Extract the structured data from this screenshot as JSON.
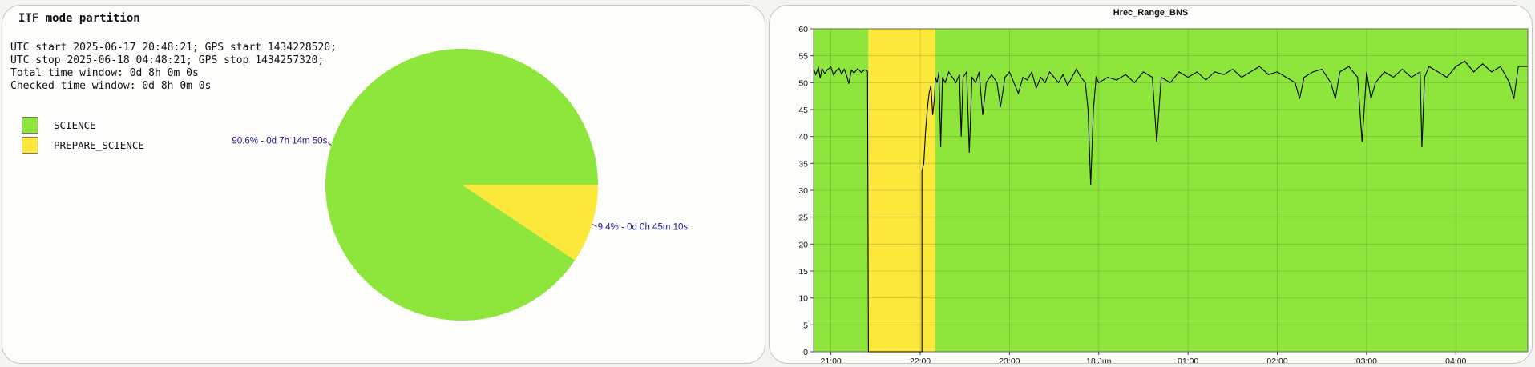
{
  "left": {
    "title": "ITF mode partition",
    "info_lines": [
      "UTC start 2025-06-17 20:48:21; GPS start 1434228520;",
      "UTC stop 2025-06-18 04:48:21; GPS stop 1434257320;",
      "Total time window: 0d 8h 0m 0s",
      "Checked time window: 0d 8h 0m 0s"
    ],
    "legend": [
      {
        "label": "SCIENCE",
        "color": "#8ee63c"
      },
      {
        "label": "PREPARE_SCIENCE",
        "color": "#fce83a"
      }
    ]
  },
  "chart_data": [
    {
      "type": "pie",
      "categories": [
        "SCIENCE",
        "PREPARE_SCIENCE"
      ],
      "values": [
        90.6,
        9.4
      ],
      "labels": [
        "90.6% - 0d 7h 14m 50s",
        "9.4% - 0d 0h 45m 10s"
      ],
      "colors": [
        "#8ee63c",
        "#fce83a"
      ]
    },
    {
      "type": "line",
      "title": "Hrec_Range_BNS",
      "xlim": [
        20.8058,
        4.8058
      ],
      "ylim": [
        0,
        60
      ],
      "yticks": [
        0,
        5,
        10,
        15,
        20,
        25,
        30,
        35,
        40,
        45,
        50,
        55,
        60
      ],
      "xticks": [
        {
          "label": "21:00",
          "hour": 21.0
        },
        {
          "label": "22:00",
          "hour": 22.0
        },
        {
          "label": "23:00",
          "hour": 23.0
        },
        {
          "label": "18 Jun",
          "hour": 24.0
        },
        {
          "label": "01:00",
          "hour": 25.0
        },
        {
          "label": "02:00",
          "hour": 26.0
        },
        {
          "label": "03:00",
          "hour": 27.0
        },
        {
          "label": "04:00",
          "hour": 28.0
        }
      ],
      "state_bands": [
        {
          "state": "SCIENCE",
          "start": 20.8058,
          "end": 21.42,
          "color": "#8ee63c"
        },
        {
          "state": "PREPARE_SCIENCE",
          "start": 21.42,
          "end": 22.17,
          "color": "#fce83a"
        },
        {
          "state": "SCIENCE",
          "start": 22.17,
          "end": 28.8058,
          "color": "#8ee63c"
        }
      ],
      "grid": true,
      "series": [
        {
          "color": "#000000",
          "points": [
            [
              20.806,
              52.5
            ],
            [
              20.83,
              51.5
            ],
            [
              20.86,
              52.8
            ],
            [
              20.88,
              50.8
            ],
            [
              20.9,
              52.6
            ],
            [
              20.93,
              51.7
            ],
            [
              20.96,
              52.4
            ],
            [
              21.0,
              52.9
            ],
            [
              21.03,
              51.4
            ],
            [
              21.06,
              52.2
            ],
            [
              21.09,
              52.7
            ],
            [
              21.12,
              51.6
            ],
            [
              21.15,
              52.5
            ],
            [
              21.18,
              51.1
            ],
            [
              21.2,
              49.8
            ],
            [
              21.23,
              52.3
            ],
            [
              21.26,
              51.8
            ],
            [
              21.3,
              52.6
            ],
            [
              21.34,
              51.9
            ],
            [
              21.38,
              52.4
            ],
            [
              21.41,
              52.1
            ],
            [
              21.42,
              0
            ],
            [
              22.02,
              0
            ],
            [
              22.02,
              33.5
            ],
            [
              22.04,
              35
            ],
            [
              22.06,
              41
            ],
            [
              22.08,
              45
            ],
            [
              22.1,
              48
            ],
            [
              22.12,
              49.5
            ],
            [
              22.14,
              44
            ],
            [
              22.16,
              47
            ],
            [
              22.17,
              51
            ],
            [
              22.19,
              50
            ],
            [
              22.21,
              52
            ],
            [
              22.23,
              38
            ],
            [
              22.25,
              51
            ],
            [
              22.28,
              50
            ],
            [
              22.32,
              52
            ],
            [
              22.36,
              51
            ],
            [
              22.4,
              50
            ],
            [
              22.44,
              51.5
            ],
            [
              22.46,
              40
            ],
            [
              22.48,
              51
            ],
            [
              22.52,
              52
            ],
            [
              22.55,
              37
            ],
            [
              22.58,
              51
            ],
            [
              22.62,
              50
            ],
            [
              22.66,
              52
            ],
            [
              22.7,
              44
            ],
            [
              22.74,
              50
            ],
            [
              22.8,
              51.5
            ],
            [
              22.86,
              50
            ],
            [
              22.9,
              45.5
            ],
            [
              22.95,
              51
            ],
            [
              23.0,
              52
            ],
            [
              23.05,
              50
            ],
            [
              23.1,
              48
            ],
            [
              23.15,
              51
            ],
            [
              23.2,
              50.5
            ],
            [
              23.25,
              52
            ],
            [
              23.3,
              49
            ],
            [
              23.35,
              51
            ],
            [
              23.4,
              50
            ],
            [
              23.45,
              52
            ],
            [
              23.5,
              51
            ],
            [
              23.55,
              50
            ],
            [
              23.6,
              51.5
            ],
            [
              23.65,
              49.5
            ],
            [
              23.7,
              51
            ],
            [
              23.75,
              52.5
            ],
            [
              23.8,
              51
            ],
            [
              23.85,
              50
            ],
            [
              23.88,
              45
            ],
            [
              23.91,
              31
            ],
            [
              23.94,
              45
            ],
            [
              23.97,
              51
            ],
            [
              24.0,
              50
            ],
            [
              24.1,
              51
            ],
            [
              24.2,
              50.5
            ],
            [
              24.3,
              51.5
            ],
            [
              24.4,
              50
            ],
            [
              24.5,
              52
            ],
            [
              24.6,
              51
            ],
            [
              24.65,
              39
            ],
            [
              24.7,
              51
            ],
            [
              24.8,
              50
            ],
            [
              24.9,
              52
            ],
            [
              25.0,
              51
            ],
            [
              25.1,
              52
            ],
            [
              25.2,
              50.5
            ],
            [
              25.3,
              52
            ],
            [
              25.4,
              51.5
            ],
            [
              25.5,
              52.5
            ],
            [
              25.6,
              51
            ],
            [
              25.7,
              52
            ],
            [
              25.8,
              53
            ],
            [
              25.9,
              51.5
            ],
            [
              26.0,
              52
            ],
            [
              26.1,
              51
            ],
            [
              26.2,
              50
            ],
            [
              26.25,
              47
            ],
            [
              26.3,
              51
            ],
            [
              26.4,
              52
            ],
            [
              26.5,
              52.5
            ],
            [
              26.6,
              50
            ],
            [
              26.65,
              47
            ],
            [
              26.7,
              52
            ],
            [
              26.8,
              53
            ],
            [
              26.9,
              51
            ],
            [
              26.95,
              39
            ],
            [
              27.0,
              52
            ],
            [
              27.05,
              47
            ],
            [
              27.1,
              50
            ],
            [
              27.2,
              52
            ],
            [
              27.3,
              51
            ],
            [
              27.4,
              52.5
            ],
            [
              27.5,
              51
            ],
            [
              27.6,
              52
            ],
            [
              27.62,
              38
            ],
            [
              27.65,
              51
            ],
            [
              27.7,
              53
            ],
            [
              27.8,
              52
            ],
            [
              27.9,
              51
            ],
            [
              28.0,
              53
            ],
            [
              28.1,
              54
            ],
            [
              28.2,
              52
            ],
            [
              28.3,
              53.5
            ],
            [
              28.4,
              52
            ],
            [
              28.5,
              53
            ],
            [
              28.6,
              50
            ],
            [
              28.65,
              47
            ],
            [
              28.7,
              53
            ],
            [
              28.8,
              53
            ]
          ]
        }
      ]
    }
  ]
}
